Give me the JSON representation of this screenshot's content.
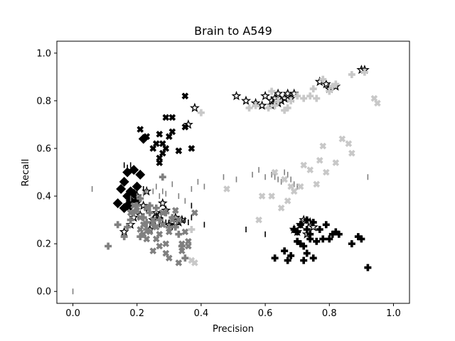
{
  "chart_data": {
    "type": "scatter",
    "title": "Brain to A549",
    "xlabel": "Precision",
    "ylabel": "Recall",
    "xlim": [
      -0.05,
      1.05
    ],
    "ylim": [
      -0.05,
      1.05
    ],
    "xticks": [
      "0.0",
      "0.2",
      "0.4",
      "0.6",
      "0.8",
      "1.0"
    ],
    "yticks": [
      "0.0",
      "0.2",
      "0.4",
      "0.6",
      "0.8",
      "1.0"
    ],
    "grid": false,
    "legend": "none",
    "series": [
      {
        "marker": "diamond",
        "color": "#000000",
        "points": [
          [
            0.14,
            0.37
          ],
          [
            0.15,
            0.43
          ],
          [
            0.16,
            0.35
          ],
          [
            0.16,
            0.46
          ],
          [
            0.17,
            0.4
          ],
          [
            0.17,
            0.5
          ],
          [
            0.18,
            0.36
          ],
          [
            0.18,
            0.38
          ],
          [
            0.19,
            0.41
          ],
          [
            0.19,
            0.51
          ],
          [
            0.2,
            0.44
          ],
          [
            0.2,
            0.38
          ],
          [
            0.21,
            0.49
          ],
          [
            0.22,
            0.64
          ],
          [
            0.17,
            0.36
          ],
          [
            0.18,
            0.42
          ]
        ]
      },
      {
        "marker": "x-thick",
        "color": "#000000",
        "points": [
          [
            0.21,
            0.68
          ],
          [
            0.23,
            0.65
          ],
          [
            0.25,
            0.6
          ],
          [
            0.26,
            0.62
          ],
          [
            0.27,
            0.56
          ],
          [
            0.27,
            0.66
          ],
          [
            0.28,
            0.58
          ],
          [
            0.28,
            0.62
          ],
          [
            0.29,
            0.6
          ],
          [
            0.29,
            0.73
          ],
          [
            0.3,
            0.65
          ],
          [
            0.31,
            0.67
          ],
          [
            0.31,
            0.73
          ],
          [
            0.33,
            0.59
          ],
          [
            0.35,
            0.82
          ],
          [
            0.35,
            0.69
          ],
          [
            0.37,
            0.6
          ],
          [
            0.27,
            0.54
          ]
        ]
      },
      {
        "marker": "star",
        "color": "#000000",
        "points": [
          [
            0.16,
            0.25
          ],
          [
            0.18,
            0.28
          ],
          [
            0.19,
            0.31
          ],
          [
            0.2,
            0.4
          ],
          [
            0.21,
            0.32
          ],
          [
            0.22,
            0.36
          ],
          [
            0.23,
            0.42
          ],
          [
            0.24,
            0.26
          ],
          [
            0.25,
            0.3
          ],
          [
            0.26,
            0.33
          ],
          [
            0.27,
            0.32
          ],
          [
            0.28,
            0.37
          ],
          [
            0.29,
            0.34
          ],
          [
            0.3,
            0.28
          ],
          [
            0.31,
            0.29
          ],
          [
            0.32,
            0.31
          ],
          [
            0.33,
            0.29
          ],
          [
            0.34,
            0.3
          ],
          [
            0.36,
            0.7
          ],
          [
            0.38,
            0.77
          ],
          [
            0.51,
            0.82
          ],
          [
            0.54,
            0.8
          ],
          [
            0.57,
            0.79
          ],
          [
            0.59,
            0.78
          ],
          [
            0.6,
            0.82
          ],
          [
            0.62,
            0.8
          ],
          [
            0.63,
            0.81
          ],
          [
            0.64,
            0.79
          ],
          [
            0.65,
            0.8
          ],
          [
            0.66,
            0.81
          ],
          [
            0.67,
            0.83
          ],
          [
            0.68,
            0.81
          ],
          [
            0.69,
            0.83
          ],
          [
            0.69,
            0.26
          ],
          [
            0.7,
            0.25
          ],
          [
            0.71,
            0.28
          ],
          [
            0.72,
            0.3
          ],
          [
            0.73,
            0.24
          ],
          [
            0.74,
            0.29
          ],
          [
            0.75,
            0.27
          ],
          [
            0.77,
            0.88
          ],
          [
            0.79,
            0.87
          ],
          [
            0.8,
            0.85
          ],
          [
            0.82,
            0.86
          ],
          [
            0.9,
            0.93
          ],
          [
            0.91,
            0.93
          ],
          [
            0.62,
            0.78
          ],
          [
            0.64,
            0.83
          ]
        ]
      },
      {
        "marker": "plus-thick",
        "color": "#000000",
        "points": [
          [
            0.63,
            0.14
          ],
          [
            0.66,
            0.17
          ],
          [
            0.67,
            0.13
          ],
          [
            0.68,
            0.15
          ],
          [
            0.69,
            0.26
          ],
          [
            0.7,
            0.25
          ],
          [
            0.71,
            0.2
          ],
          [
            0.71,
            0.28
          ],
          [
            0.72,
            0.13
          ],
          [
            0.72,
            0.19
          ],
          [
            0.73,
            0.26
          ],
          [
            0.73,
            0.3
          ],
          [
            0.74,
            0.24
          ],
          [
            0.74,
            0.22
          ],
          [
            0.75,
            0.29
          ],
          [
            0.75,
            0.14
          ],
          [
            0.76,
            0.21
          ],
          [
            0.77,
            0.26
          ],
          [
            0.78,
            0.22
          ],
          [
            0.79,
            0.28
          ],
          [
            0.8,
            0.22
          ],
          [
            0.81,
            0.24
          ],
          [
            0.82,
            0.25
          ],
          [
            0.83,
            0.24
          ],
          [
            0.87,
            0.2
          ],
          [
            0.89,
            0.23
          ],
          [
            0.9,
            0.22
          ],
          [
            0.92,
            0.1
          ],
          [
            0.7,
            0.21
          ],
          [
            0.73,
            0.16
          ]
        ]
      },
      {
        "marker": "vline",
        "color": "#000000",
        "points": [
          [
            0.16,
            0.53
          ],
          [
            0.17,
            0.52
          ],
          [
            0.18,
            0.53
          ],
          [
            0.2,
            0.41
          ],
          [
            0.22,
            0.43
          ],
          [
            0.23,
            0.34
          ],
          [
            0.24,
            0.28
          ],
          [
            0.25,
            0.3
          ],
          [
            0.26,
            0.32
          ],
          [
            0.27,
            0.28
          ],
          [
            0.28,
            0.3
          ],
          [
            0.29,
            0.29
          ],
          [
            0.3,
            0.29
          ],
          [
            0.31,
            0.27
          ],
          [
            0.33,
            0.29
          ],
          [
            0.34,
            0.3
          ],
          [
            0.35,
            0.3
          ],
          [
            0.36,
            0.29
          ],
          [
            0.37,
            0.31
          ],
          [
            0.41,
            0.28
          ],
          [
            0.54,
            0.26
          ],
          [
            0.6,
            0.24
          ],
          [
            0.37,
            0.36
          ]
        ]
      },
      {
        "marker": "x-thick",
        "color": "#808080",
        "points": [
          [
            0.18,
            0.33
          ],
          [
            0.19,
            0.36
          ],
          [
            0.2,
            0.34
          ],
          [
            0.21,
            0.31
          ],
          [
            0.21,
            0.26
          ],
          [
            0.22,
            0.28
          ],
          [
            0.23,
            0.35
          ],
          [
            0.23,
            0.22
          ],
          [
            0.24,
            0.25
          ],
          [
            0.25,
            0.3
          ],
          [
            0.25,
            0.17
          ],
          [
            0.26,
            0.22
          ],
          [
            0.27,
            0.24
          ],
          [
            0.27,
            0.19
          ],
          [
            0.28,
            0.28
          ],
          [
            0.29,
            0.2
          ],
          [
            0.29,
            0.16
          ],
          [
            0.3,
            0.14
          ],
          [
            0.3,
            0.25
          ],
          [
            0.31,
            0.3
          ],
          [
            0.32,
            0.34
          ],
          [
            0.33,
            0.3
          ],
          [
            0.33,
            0.12
          ],
          [
            0.34,
            0.17
          ],
          [
            0.34,
            0.2
          ],
          [
            0.35,
            0.25
          ],
          [
            0.36,
            0.21
          ],
          [
            0.36,
            0.19
          ],
          [
            0.38,
            0.33
          ],
          [
            0.22,
            0.24
          ],
          [
            0.26,
            0.27
          ],
          [
            0.28,
            0.33
          ]
        ]
      },
      {
        "marker": "plus-thick",
        "color": "#808080",
        "points": [
          [
            0.11,
            0.19
          ],
          [
            0.14,
            0.28
          ],
          [
            0.16,
            0.23
          ],
          [
            0.17,
            0.27
          ],
          [
            0.18,
            0.3
          ],
          [
            0.19,
            0.33
          ],
          [
            0.2,
            0.36
          ],
          [
            0.21,
            0.39
          ],
          [
            0.22,
            0.31
          ],
          [
            0.23,
            0.26
          ],
          [
            0.24,
            0.33
          ],
          [
            0.25,
            0.28
          ],
          [
            0.26,
            0.35
          ],
          [
            0.27,
            0.3
          ],
          [
            0.28,
            0.48
          ],
          [
            0.29,
            0.33
          ],
          [
            0.3,
            0.27
          ],
          [
            0.31,
            0.31
          ],
          [
            0.32,
            0.27
          ],
          [
            0.33,
            0.24
          ],
          [
            0.34,
            0.19
          ],
          [
            0.35,
            0.14
          ],
          [
            0.21,
            0.23
          ],
          [
            0.23,
            0.29
          ],
          [
            0.24,
            0.36
          ]
        ]
      },
      {
        "marker": "vline",
        "color": "#808080",
        "points": [
          [
            0.0,
            0.0
          ],
          [
            0.06,
            0.43
          ],
          [
            0.18,
            0.39
          ],
          [
            0.2,
            0.4
          ],
          [
            0.22,
            0.41
          ],
          [
            0.23,
            0.42
          ],
          [
            0.25,
            0.42
          ],
          [
            0.26,
            0.44
          ],
          [
            0.27,
            0.4
          ],
          [
            0.28,
            0.42
          ],
          [
            0.29,
            0.41
          ],
          [
            0.31,
            0.45
          ],
          [
            0.33,
            0.4
          ],
          [
            0.35,
            0.38
          ],
          [
            0.37,
            0.43
          ],
          [
            0.39,
            0.46
          ],
          [
            0.41,
            0.44
          ],
          [
            0.47,
            0.48
          ],
          [
            0.51,
            0.47
          ],
          [
            0.56,
            0.49
          ],
          [
            0.58,
            0.51
          ],
          [
            0.6,
            0.48
          ],
          [
            0.62,
            0.49
          ],
          [
            0.63,
            0.48
          ],
          [
            0.64,
            0.47
          ],
          [
            0.65,
            0.46
          ],
          [
            0.66,
            0.5
          ],
          [
            0.67,
            0.49
          ],
          [
            0.68,
            0.47
          ],
          [
            0.69,
            0.45
          ],
          [
            0.7,
            0.44
          ],
          [
            0.92,
            0.48
          ]
        ]
      },
      {
        "marker": "x-thick",
        "color": "#c8c8c8",
        "points": [
          [
            0.37,
            0.13
          ],
          [
            0.38,
            0.12
          ],
          [
            0.48,
            0.43
          ],
          [
            0.58,
            0.3
          ],
          [
            0.59,
            0.4
          ],
          [
            0.62,
            0.4
          ],
          [
            0.63,
            0.5
          ],
          [
            0.65,
            0.35
          ],
          [
            0.66,
            0.47
          ],
          [
            0.67,
            0.38
          ],
          [
            0.68,
            0.44
          ],
          [
            0.69,
            0.42
          ],
          [
            0.71,
            0.44
          ],
          [
            0.72,
            0.53
          ],
          [
            0.76,
            0.45
          ],
          [
            0.77,
            0.55
          ],
          [
            0.78,
            0.61
          ],
          [
            0.79,
            0.5
          ],
          [
            0.82,
            0.54
          ],
          [
            0.84,
            0.64
          ],
          [
            0.86,
            0.62
          ],
          [
            0.87,
            0.58
          ],
          [
            0.94,
            0.81
          ],
          [
            0.95,
            0.79
          ],
          [
            0.74,
            0.51
          ]
        ]
      },
      {
        "marker": "plus-thick",
        "color": "#c8c8c8",
        "points": [
          [
            0.37,
            0.26
          ],
          [
            0.4,
            0.75
          ],
          [
            0.55,
            0.77
          ],
          [
            0.57,
            0.78
          ],
          [
            0.61,
            0.77
          ],
          [
            0.63,
            0.78
          ],
          [
            0.64,
            0.8
          ],
          [
            0.66,
            0.76
          ],
          [
            0.67,
            0.77
          ],
          [
            0.68,
            0.8
          ],
          [
            0.7,
            0.82
          ],
          [
            0.72,
            0.81
          ],
          [
            0.74,
            0.82
          ],
          [
            0.76,
            0.81
          ],
          [
            0.78,
            0.89
          ],
          [
            0.8,
            0.84
          ],
          [
            0.81,
            0.86
          ],
          [
            0.82,
            0.87
          ],
          [
            0.87,
            0.91
          ],
          [
            0.91,
            0.92
          ],
          [
            0.62,
            0.84
          ],
          [
            0.75,
            0.85
          ]
        ]
      }
    ]
  }
}
